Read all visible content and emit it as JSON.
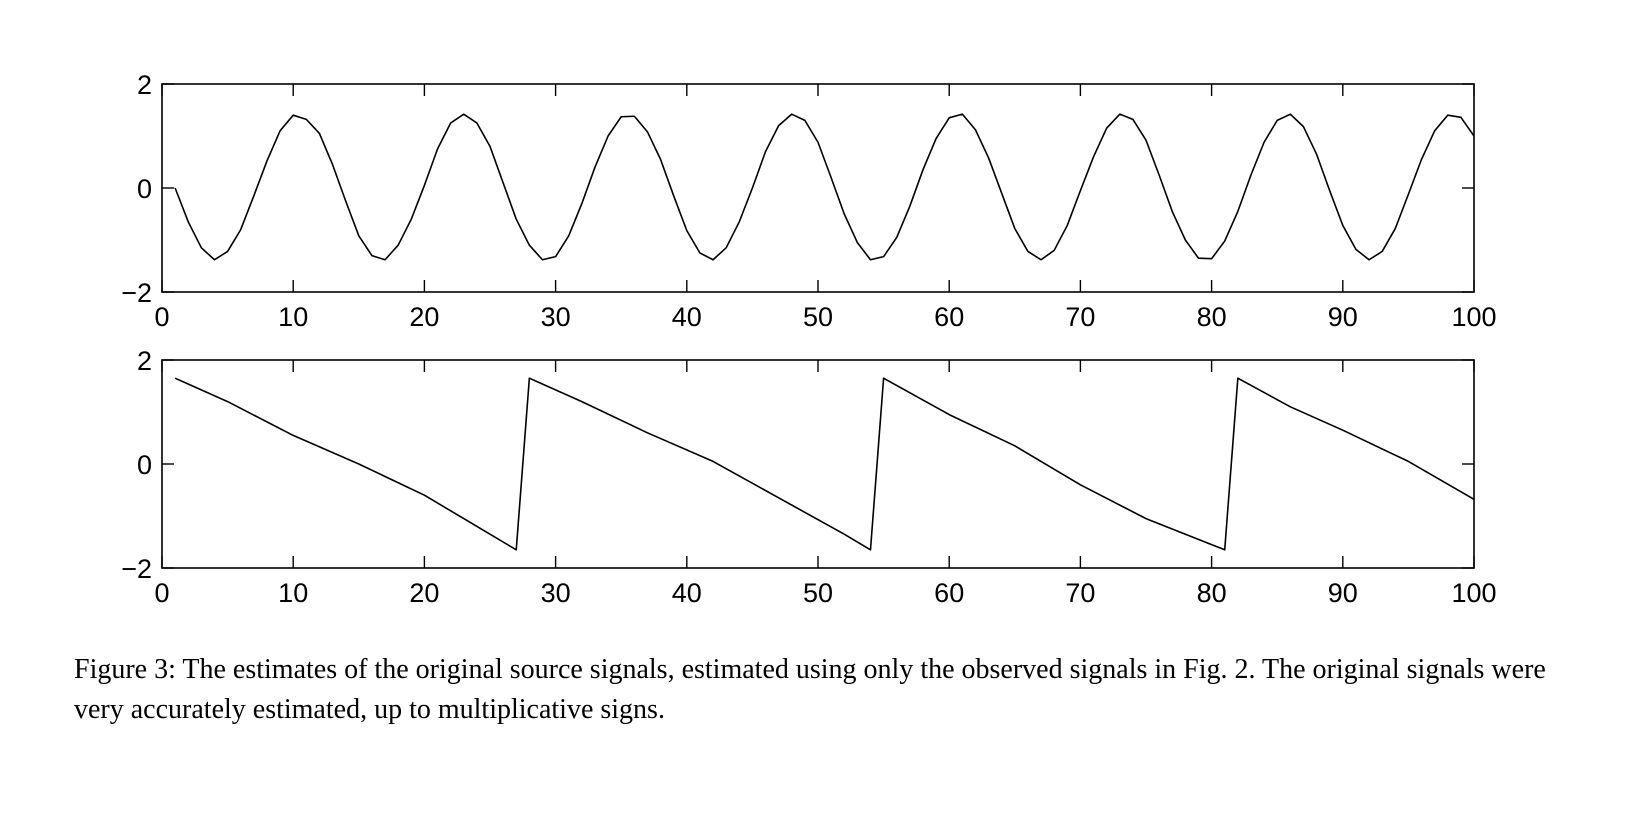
{
  "chart_data": [
    {
      "type": "line",
      "title": "",
      "xlabel": "",
      "ylabel": "",
      "xlim": [
        0,
        100
      ],
      "ylim": [
        -2,
        2
      ],
      "xticks": [
        0,
        10,
        20,
        30,
        40,
        50,
        60,
        70,
        80,
        90,
        100
      ],
      "xtick_labels": [
        "0",
        "10",
        "20",
        "30",
        "40",
        "50",
        "60",
        "70",
        "80",
        "90",
        "100"
      ],
      "yticks": [
        -2,
        0,
        2
      ],
      "ytick_labels": [
        "−2",
        "0",
        "2"
      ],
      "grid": false,
      "series": [
        {
          "x": [
            1,
            2,
            3,
            4,
            5,
            6,
            7,
            8,
            9,
            10,
            11,
            12,
            13,
            14,
            15,
            16,
            17,
            18,
            19,
            20,
            21,
            22,
            23,
            24,
            25,
            26,
            27,
            28,
            29,
            30,
            31,
            32,
            33,
            34,
            35,
            36,
            37,
            38,
            39,
            40,
            41,
            42,
            43,
            44,
            45,
            46,
            47,
            48,
            49,
            50,
            51,
            52,
            53,
            54,
            55,
            56,
            57,
            58,
            59,
            60,
            61,
            62,
            63,
            64,
            65,
            66,
            67,
            68,
            69,
            70,
            71,
            72,
            73,
            74,
            75,
            76,
            77,
            78,
            79,
            80,
            81,
            82,
            83,
            84,
            85,
            86,
            87,
            88,
            89,
            90,
            91,
            92,
            93,
            94,
            95,
            96,
            97,
            98,
            99,
            100
          ],
          "values": [
            0.0,
            -0.65,
            -1.15,
            -1.38,
            -1.22,
            -0.8,
            -0.15,
            0.52,
            1.1,
            1.4,
            1.32,
            1.05,
            0.45,
            -0.25,
            -0.92,
            -1.3,
            -1.38,
            -1.1,
            -0.6,
            0.05,
            0.75,
            1.25,
            1.42,
            1.25,
            0.8,
            0.1,
            -0.6,
            -1.1,
            -1.38,
            -1.32,
            -0.92,
            -0.3,
            0.4,
            1.0,
            1.37,
            1.38,
            1.08,
            0.55,
            -0.15,
            -0.82,
            -1.25,
            -1.38,
            -1.15,
            -0.65,
            0.0,
            0.7,
            1.2,
            1.42,
            1.3,
            0.88,
            0.2,
            -0.5,
            -1.05,
            -1.38,
            -1.32,
            -0.95,
            -0.35,
            0.35,
            0.95,
            1.35,
            1.42,
            1.12,
            0.58,
            -0.1,
            -0.78,
            -1.22,
            -1.38,
            -1.2,
            -0.72,
            -0.05,
            0.6,
            1.15,
            1.42,
            1.32,
            0.92,
            0.25,
            -0.45,
            -1.0,
            -1.35,
            -1.36,
            -1.02,
            -0.45,
            0.25,
            0.88,
            1.3,
            1.42,
            1.18,
            0.65,
            -0.05,
            -0.72,
            -1.18,
            -1.38,
            -1.22,
            -0.78,
            -0.12,
            0.55,
            1.1,
            1.4,
            1.36,
            1.0
          ]
        }
      ]
    },
    {
      "type": "line",
      "title": "",
      "xlabel": "",
      "ylabel": "",
      "xlim": [
        0,
        100
      ],
      "ylim": [
        -2,
        2
      ],
      "xticks": [
        0,
        10,
        20,
        30,
        40,
        50,
        60,
        70,
        80,
        90,
        100
      ],
      "xtick_labels": [
        "0",
        "10",
        "20",
        "30",
        "40",
        "50",
        "60",
        "70",
        "80",
        "90",
        "100"
      ],
      "yticks": [
        -2,
        0,
        2
      ],
      "ytick_labels": [
        "−2",
        "0",
        "2"
      ],
      "grid": false,
      "series": [
        {
          "x": [
            1,
            5,
            10,
            15,
            20,
            25,
            27,
            28,
            32,
            37,
            42,
            47,
            52,
            54,
            55,
            60,
            65,
            70,
            75,
            80,
            81,
            82,
            86,
            90,
            95,
            100
          ],
          "values": [
            1.65,
            1.2,
            0.55,
            0.0,
            -0.6,
            -1.35,
            -1.65,
            1.65,
            1.2,
            0.6,
            0.05,
            -0.65,
            -1.35,
            -1.65,
            1.65,
            0.95,
            0.35,
            -0.4,
            -1.05,
            -1.55,
            -1.65,
            1.65,
            1.1,
            0.65,
            0.05,
            -0.68
          ]
        }
      ]
    }
  ],
  "caption": "Figure 3: The estimates of the original source signals, estimated using only the observed signals in Fig. 2. The original signals were very accurately estimated, up to multiplicative signs."
}
